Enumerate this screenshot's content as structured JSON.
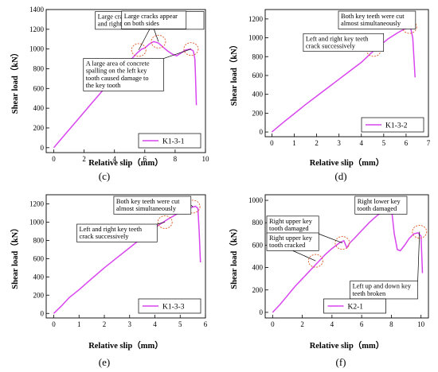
{
  "figure": {
    "series_color": "#d946ef",
    "highlight_color": "#e05c2a",
    "annotation_box_color": "#111111"
  },
  "chart_data": [
    {
      "type": "line",
      "panel_label": "(c)",
      "xlabel": "Relative slip（mm）",
      "ylabel": "Shear load（kN）",
      "xlim": [
        -0.5,
        10
      ],
      "ylim": [
        -50,
        1400
      ],
      "xticks": [
        0,
        2,
        4,
        6,
        8,
        10
      ],
      "yticks": [
        0,
        200,
        400,
        600,
        800,
        1000,
        1200,
        1400
      ],
      "legend": "top-right",
      "series": [
        {
          "name": "K1-3-1",
          "x": [
            0,
            0.5,
            1,
            1.5,
            2,
            2.5,
            3,
            3.5,
            4,
            4.5,
            5,
            5.5,
            5.8,
            6,
            6.3,
            6.6,
            6.9,
            7.2,
            7.5,
            7.8,
            8.1,
            8.4,
            8.7,
            9,
            9.2,
            9.3,
            9.35,
            9.4
          ],
          "y": [
            0,
            90,
            180,
            270,
            360,
            450,
            540,
            630,
            720,
            800,
            880,
            960,
            1000,
            1010,
            1050,
            1075,
            1060,
            1020,
            980,
            950,
            930,
            960,
            990,
            1000,
            980,
            900,
            700,
            430
          ]
        }
      ],
      "annotations": [
        {
          "text": [
            "Large cracks appeared on the left",
            "and right key teeth successively"
          ],
          "x": 5.6,
          "y": 990,
          "tx": 7,
          "ty": 1290
        },
        {
          "text": [
            "Large cracks appear",
            "on both sides"
          ],
          "x": 6.9,
          "y": 1075,
          "tx": 6.6,
          "ty": 1345
        },
        {
          "text": [
            "A large area of concrete",
            "spalling on the left key",
            "tooth caused damage to",
            "the key tooth"
          ],
          "x": 9.05,
          "y": 1000,
          "tx": 4.6,
          "ty": 740
        }
      ]
    },
    {
      "type": "line",
      "panel_label": "(d)",
      "xlabel": "Relative slip（mm）",
      "ylabel": "Shear load（kN）",
      "xlim": [
        -0.3,
        7
      ],
      "ylim": [
        -50,
        1300
      ],
      "xticks": [
        0,
        1,
        2,
        3,
        4,
        5,
        6,
        7
      ],
      "yticks": [
        0,
        200,
        400,
        600,
        800,
        1000,
        1200
      ],
      "legend": "bottom-right",
      "series": [
        {
          "name": "K1-3-2",
          "x": [
            0,
            0.5,
            1,
            1.5,
            2,
            2.5,
            3,
            3.5,
            4,
            4.4,
            4.8,
            5.2,
            5.6,
            5.9,
            6.1,
            6.2,
            6.3,
            6.35,
            6.4
          ],
          "y": [
            0,
            100,
            195,
            290,
            380,
            470,
            560,
            650,
            740,
            830,
            910,
            990,
            1050,
            1090,
            1105,
            1110,
            1000,
            800,
            580
          ]
        }
      ],
      "annotations": [
        {
          "text": [
            "Both key teeth were cut",
            "almost simultaneously"
          ],
          "x": 6.15,
          "y": 1115,
          "tx": 4.7,
          "ty": 1215
        },
        {
          "text": [
            "Left and right key teeth",
            "crack successively"
          ],
          "x": 4.55,
          "y": 870,
          "tx": 3.2,
          "ty": 950
        }
      ]
    },
    {
      "type": "line",
      "panel_label": "(e)",
      "xlabel": "Relative slip（mm）",
      "ylabel": "Shear load（kN）",
      "xlim": [
        -0.3,
        6
      ],
      "ylim": [
        -50,
        1300
      ],
      "xticks": [
        0,
        1,
        2,
        3,
        4,
        5,
        6
      ],
      "yticks": [
        0,
        200,
        400,
        600,
        800,
        1000,
        1200
      ],
      "legend": "bottom-right",
      "series": [
        {
          "name": "K1-3-3",
          "x": [
            0,
            0.3,
            0.6,
            1,
            1.5,
            2,
            2.5,
            3,
            3.5,
            4,
            4.5,
            5,
            5.3,
            5.5,
            5.6,
            5.7,
            5.75,
            5.8
          ],
          "y": [
            0,
            80,
            170,
            260,
            380,
            500,
            610,
            720,
            830,
            940,
            1030,
            1110,
            1150,
            1165,
            1175,
            1150,
            900,
            560
          ]
        }
      ],
      "annotations": [
        {
          "text": [
            "Both key teeth were cut",
            "almost simultaneously"
          ],
          "x": 5.5,
          "y": 1170,
          "tx": 3.9,
          "ty": 1250
        },
        {
          "text": [
            "Left and right key teeth",
            "crack successively"
          ],
          "x": 4.4,
          "y": 1000,
          "tx": 2.5,
          "ty": 880
        }
      ]
    },
    {
      "type": "line",
      "panel_label": "(f)",
      "xlabel": "Relative slip（mm）",
      "ylabel": "Shear load（kN）",
      "xlim": [
        -0.5,
        10.5
      ],
      "ylim": [
        -50,
        1050
      ],
      "xticks": [
        0,
        2,
        4,
        6,
        8,
        10
      ],
      "yticks": [
        0,
        200,
        400,
        600,
        800,
        1000
      ],
      "legend": "bottom-center",
      "series": [
        {
          "name": "K2-1",
          "x": [
            0,
            0.5,
            1,
            1.5,
            2,
            2.5,
            3,
            3.5,
            4,
            4.5,
            4.8,
            5,
            5.2,
            5.5,
            6,
            6.5,
            7,
            7.5,
            7.8,
            8,
            8.2,
            8.4,
            8.6,
            8.9,
            9.2,
            9.5,
            9.8,
            10,
            10.1
          ],
          "y": [
            0,
            70,
            150,
            230,
            300,
            370,
            440,
            510,
            570,
            620,
            640,
            575,
            620,
            660,
            730,
            800,
            860,
            910,
            930,
            940,
            700,
            560,
            550,
            600,
            660,
            700,
            710,
            680,
            350
          ]
        }
      ],
      "annotations": [
        {
          "text": [
            "Right lower key",
            "tooth damaged"
          ],
          "x": 8.1,
          "y": 950,
          "tx": 7.3,
          "ty": 1000
        },
        {
          "text": [
            "Right upper key",
            "tooth damaged"
          ],
          "x": 4.7,
          "y": 620,
          "tx": 1.2,
          "ty": 780
        },
        {
          "text": [
            "Right upper key",
            "tooth cracked"
          ],
          "x": 2.9,
          "y": 460,
          "tx": 0.8,
          "ty": 630
        },
        {
          "text": [
            "Left up and down key",
            "teeth broken"
          ],
          "x": 9.9,
          "y": 720,
          "tx": 7.5,
          "ty": 200
        }
      ]
    }
  ]
}
